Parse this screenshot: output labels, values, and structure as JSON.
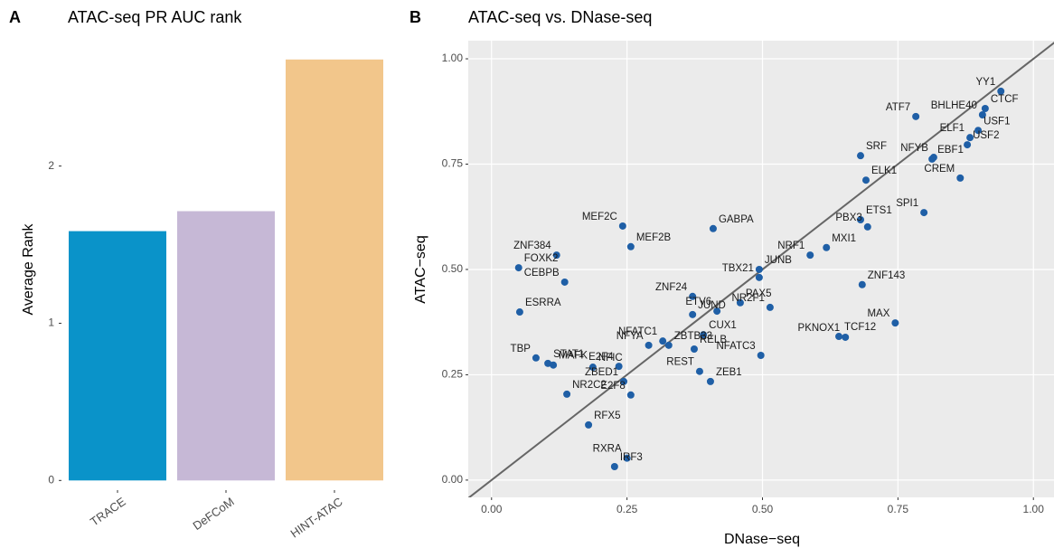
{
  "chart_data": [
    {
      "type": "bar",
      "panel_label": "A",
      "title": "ATAC-seq PR AUC rank",
      "y_label": "Average Rank",
      "categories": [
        "TRACE",
        "DeFCoM",
        "HINT-ATAC"
      ],
      "values": [
        1.586,
        1.713,
        2.678
      ],
      "colors": [
        "#0a93c9",
        "#c6b8d6",
        "#f2c68b"
      ],
      "ylim": [
        -0.05,
        2.74
      ],
      "yticks": [
        0,
        1,
        2
      ],
      "grid": false
    },
    {
      "type": "scatter",
      "panel_label": "B",
      "title": "ATAC-seq vs. DNase-seq",
      "x_label": "DNase−seq",
      "y_label": "ATAC−seq",
      "color": "#1f5fa6",
      "diagonal": true,
      "grid": true,
      "labels": [
        "YY1",
        "CTCF",
        "BHLHE40",
        "USF1",
        "ELF1",
        "USF2",
        "ATF7",
        "SRF",
        "NFYB",
        "EBF1",
        "CREM",
        "ELK1",
        "SPI1",
        "ETS1",
        "PBX3",
        "MXI1",
        "NRF1",
        "JUNB",
        "TBX21",
        "GABPA",
        "MEF2C",
        "MEF2B",
        "ZNF384",
        "FOXK2",
        "CEBPB",
        "ESRRA",
        "ZNF24",
        "PAX5",
        "ETV6",
        "JUND",
        "NR2F1",
        "ZNF143",
        "MAX",
        "TCF12",
        "PKNOX1",
        "CUX1",
        "NFATC1",
        "ZBTB33",
        "NFYA",
        "RELB",
        "NFATC3",
        "STAT1",
        "TBP",
        "MAFK",
        "E2F4",
        "NFIC",
        "REST",
        "ZEB1",
        "ZBED1",
        "NR2C2",
        "E2F8",
        "RFX5",
        "RXRA",
        "IRF3"
      ],
      "x": [
        0.94,
        0.911,
        0.906,
        0.898,
        0.883,
        0.878,
        0.783,
        0.681,
        0.816,
        0.813,
        0.865,
        0.691,
        0.798,
        0.681,
        0.694,
        0.618,
        0.588,
        0.494,
        0.494,
        0.409,
        0.242,
        0.257,
        0.12,
        0.05,
        0.135,
        0.052,
        0.371,
        0.459,
        0.416,
        0.371,
        0.514,
        0.684,
        0.745,
        0.641,
        0.653,
        0.391,
        0.316,
        0.327,
        0.29,
        0.374,
        0.497,
        0.104,
        0.082,
        0.114,
        0.235,
        0.187,
        0.384,
        0.404,
        0.244,
        0.139,
        0.257,
        0.179,
        0.25,
        0.227
      ],
      "y": [
        0.923,
        0.882,
        0.867,
        0.83,
        0.813,
        0.796,
        0.863,
        0.77,
        0.766,
        0.762,
        0.717,
        0.712,
        0.635,
        0.618,
        0.601,
        0.552,
        0.534,
        0.5,
        0.481,
        0.597,
        0.603,
        0.554,
        0.534,
        0.504,
        0.47,
        0.399,
        0.436,
        0.421,
        0.401,
        0.393,
        0.41,
        0.464,
        0.373,
        0.341,
        0.339,
        0.345,
        0.33,
        0.32,
        0.32,
        0.311,
        0.296,
        0.277,
        0.29,
        0.273,
        0.27,
        0.268,
        0.258,
        0.234,
        0.234,
        0.204,
        0.202,
        0.131,
        0.052,
        0.032
      ],
      "xlim": [
        -0.043,
        1.038
      ],
      "ylim": [
        -0.041,
        1.043
      ],
      "xticks": [
        {
          "value": 0,
          "label": "0.00"
        },
        {
          "value": 0.25,
          "label": "0.25"
        },
        {
          "value": 0.5,
          "label": "0.50"
        },
        {
          "value": 0.75,
          "label": "0.75"
        },
        {
          "value": 1,
          "label": "1.00"
        }
      ],
      "yticks": [
        {
          "value": 0,
          "label": "0.00"
        },
        {
          "value": 0.25,
          "label": "0.25"
        },
        {
          "value": 0.5,
          "label": "0.50"
        },
        {
          "value": 0.75,
          "label": "0.75"
        },
        {
          "value": 1,
          "label": "1.00"
        }
      ]
    }
  ]
}
